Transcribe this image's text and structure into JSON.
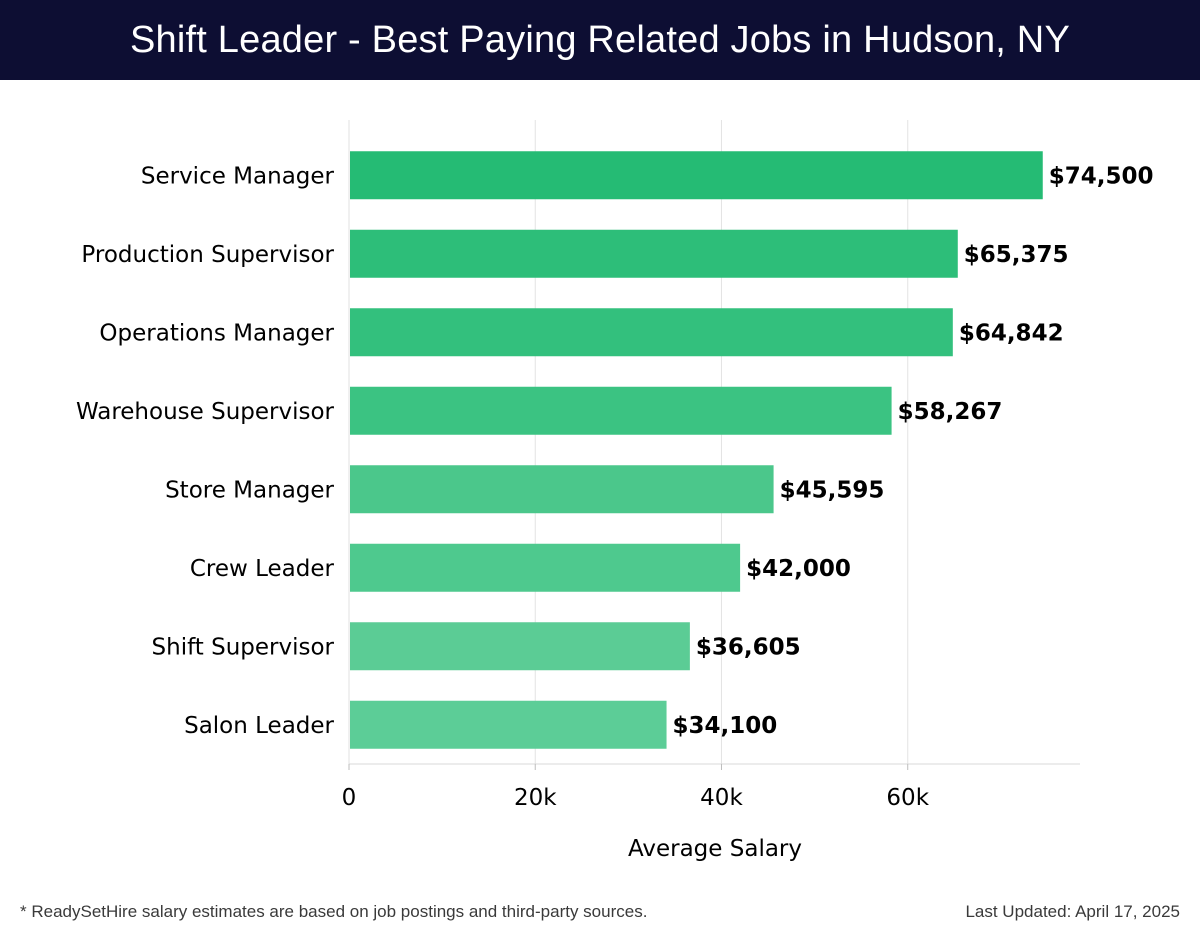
{
  "header": {
    "title": "Shift Leader - Best Paying Related Jobs in Hudson, NY"
  },
  "chart_data": {
    "type": "bar",
    "orientation": "horizontal",
    "title": "Shift Leader - Best Paying Related Jobs in Hudson, NY",
    "xlabel": "Average Salary",
    "ylabel": "",
    "xlim": [
      0,
      78500
    ],
    "xticks": [
      0,
      20000,
      40000,
      60000
    ],
    "xtick_labels": [
      "0",
      "20k",
      "40k",
      "60k"
    ],
    "grid": true,
    "categories": [
      "Service Manager",
      "Production Supervisor",
      "Operations Manager",
      "Warehouse Supervisor",
      "Store Manager",
      "Crew Leader",
      "Shift Supervisor",
      "Salon Leader"
    ],
    "values": [
      74500,
      65375,
      64842,
      58267,
      45595,
      42000,
      36605,
      34100
    ],
    "value_labels": [
      "$74,500",
      "$65,375",
      "$64,842",
      "$58,267",
      "$45,595",
      "$42,000",
      "$36,605",
      "$34,100"
    ],
    "colors": [
      "#25bb74",
      "#2dbe79",
      "#33c07d",
      "#3bc382",
      "#4bc78b",
      "#4ec98e",
      "#5bcc95",
      "#5ccd97"
    ]
  },
  "footer": {
    "note": "* ReadySetHire salary estimates are based on job postings and third-party sources.",
    "updated": "Last Updated: April 17, 2025"
  }
}
